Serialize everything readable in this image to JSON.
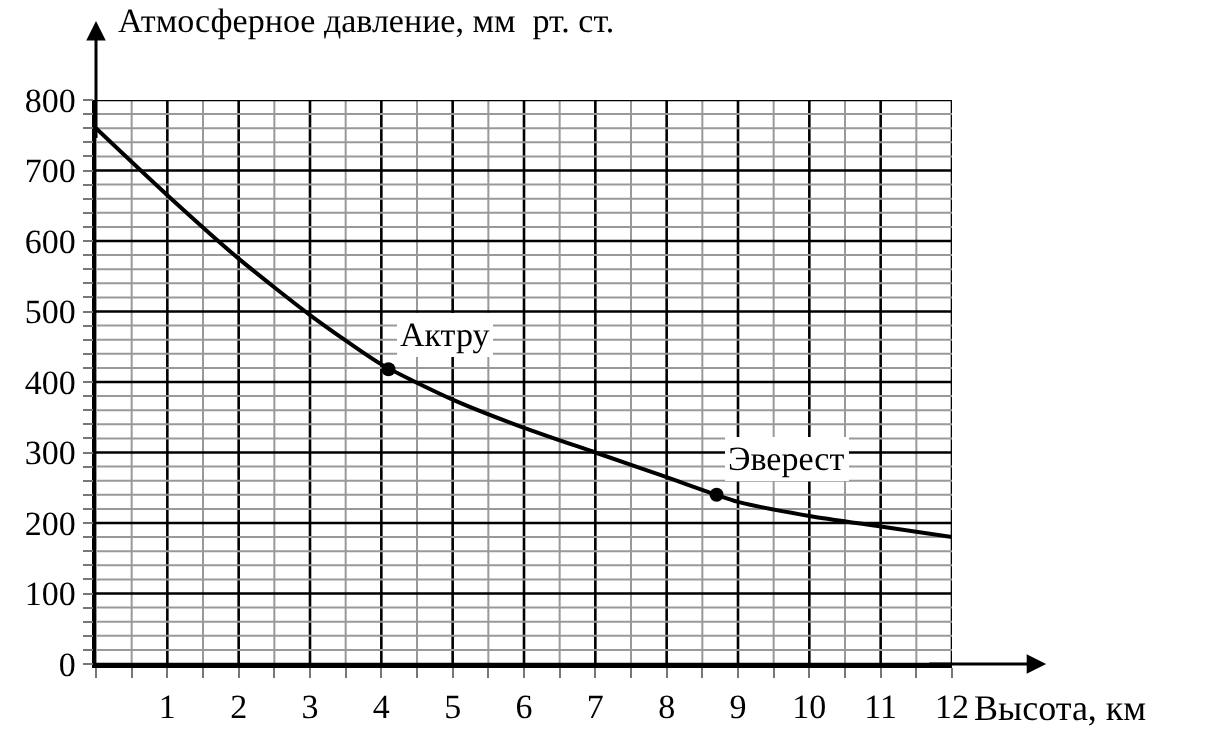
{
  "chart_data": {
    "type": "line",
    "xlabel": "Высота, км",
    "ylabel": "Атмосферное давление, мм  рт. ст.",
    "x": [
      0,
      1,
      2,
      3,
      4,
      5,
      6,
      7,
      8,
      9,
      10,
      11,
      12
    ],
    "series": [
      {
        "color": "#000000",
        "marker": "none",
        "values": [
          760,
          665,
          575,
          495,
          425,
          375,
          335,
          300,
          265,
          230,
          210,
          195,
          180
        ]
      },
      {
        "type": "scatter",
        "color": "#000000",
        "marker": "circle",
        "x": [
          4.1,
          8.7
        ],
        "values": [
          418,
          240
        ]
      }
    ],
    "annotations": [
      {
        "text": "Актру",
        "x": 4.1,
        "y": 418
      },
      {
        "text": "Эверест",
        "x": 8.7,
        "y": 240
      }
    ],
    "xlim": [
      0,
      12
    ],
    "ylim": [
      0,
      800
    ],
    "xticks": [
      {
        "value": 0,
        "label": null
      },
      {
        "value": 0.5,
        "label": null
      },
      1,
      {
        "value": 1.5,
        "label": null
      },
      2,
      {
        "value": 2.5,
        "label": null
      },
      3,
      {
        "value": 3.5,
        "label": null
      },
      4,
      {
        "value": 4.5,
        "label": null
      },
      5,
      {
        "value": 5.5,
        "label": null
      },
      6,
      {
        "value": 6.5,
        "label": null
      },
      7,
      {
        "value": 7.5,
        "label": null
      },
      8,
      {
        "value": 8.5,
        "label": null
      },
      9,
      {
        "value": 9.5,
        "label": null
      },
      10,
      {
        "value": 10.5,
        "label": null
      },
      11,
      {
        "value": 11.5,
        "label": null
      },
      12
    ],
    "yticks": [
      0,
      {
        "value": 20,
        "label": null
      },
      {
        "value": 40,
        "label": null
      },
      {
        "value": 60,
        "label": null
      },
      {
        "value": 80,
        "label": null
      },
      100,
      {
        "value": 120,
        "label": null
      },
      {
        "value": 140,
        "label": null
      },
      {
        "value": 160,
        "label": null
      },
      {
        "value": 180,
        "label": null
      },
      200,
      {
        "value": 220,
        "label": null
      },
      {
        "value": 240,
        "label": null
      },
      {
        "value": 260,
        "label": null
      },
      {
        "value": 280,
        "label": null
      },
      300,
      {
        "value": 320,
        "label": null
      },
      {
        "value": 340,
        "label": null
      },
      {
        "value": 360,
        "label": null
      },
      {
        "value": 380,
        "label": null
      },
      400,
      {
        "value": 420,
        "label": null
      },
      {
        "value": 440,
        "label": null
      },
      {
        "value": 460,
        "label": null
      },
      {
        "value": 480,
        "label": null
      },
      500,
      {
        "value": 520,
        "label": null
      },
      {
        "value": 540,
        "label": null
      },
      {
        "value": 560,
        "label": null
      },
      {
        "value": 580,
        "label": null
      },
      600,
      {
        "value": 620,
        "label": null
      },
      {
        "value": 640,
        "label": null
      },
      {
        "value": 660,
        "label": null
      },
      {
        "value": 680,
        "label": null
      },
      700,
      {
        "value": 720,
        "label": null
      },
      {
        "value": 740,
        "label": null
      },
      {
        "value": 760,
        "label": null
      },
      {
        "value": 780,
        "label": null
      },
      800
    ],
    "grid": true,
    "line_style": "solid"
  }
}
